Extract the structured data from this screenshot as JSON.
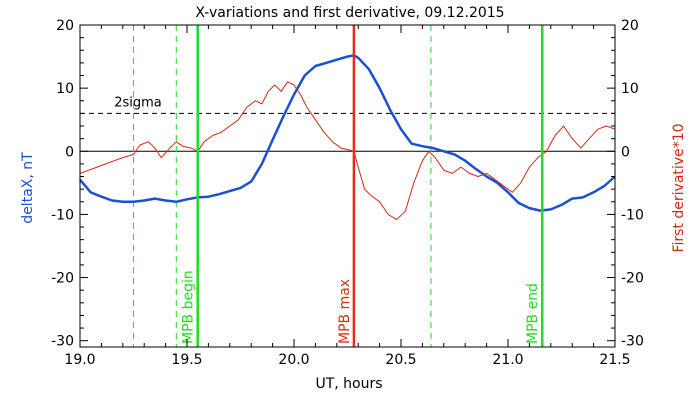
{
  "chart_data": {
    "type": "line",
    "title": "X-variations and first derivative, 09.12.2015",
    "xlabel": "UT, hours",
    "ylabel_left": "deltaX, nT",
    "ylabel_right": "First derivative*10",
    "xlim": [
      19.0,
      21.5
    ],
    "ylim": [
      -31,
      20
    ],
    "x_ticks": [
      19.0,
      19.5,
      20.0,
      20.5,
      21.0,
      21.5
    ],
    "x_tick_labels": [
      "19.0",
      "19.5",
      "20.0",
      "20.5",
      "21.0",
      "21.5"
    ],
    "y_ticks": [
      -30,
      -20,
      -10,
      0,
      10,
      20
    ],
    "y_tick_labels": [
      "-30",
      "-20",
      "-10",
      "0",
      "10",
      "20"
    ],
    "colors": {
      "series_x": "#1a4fd6",
      "series_deriv": "#d42a10",
      "markers_green": "#22dd22",
      "marker_red": "#e03010",
      "axis": "#000000"
    },
    "threshold": {
      "label": "2sigma",
      "value": 6
    },
    "zero_line": 0,
    "dashed_vlines": [
      19.25,
      19.45,
      20.64
    ],
    "markers": [
      {
        "label": "MPB begin",
        "x": 19.55,
        "color": "#22dd22"
      },
      {
        "label": "MPB max",
        "x": 20.28,
        "color": "#e03010"
      },
      {
        "label": "MPB end",
        "x": 21.16,
        "color": "#22dd22"
      }
    ],
    "series": [
      {
        "name": "deltaX",
        "x": [
          19.0,
          19.05,
          19.1,
          19.15,
          19.2,
          19.25,
          19.3,
          19.35,
          19.4,
          19.45,
          19.5,
          19.55,
          19.6,
          19.65,
          19.7,
          19.75,
          19.8,
          19.85,
          19.9,
          19.95,
          20.0,
          20.05,
          20.1,
          20.15,
          20.2,
          20.25,
          20.28,
          20.3,
          20.35,
          20.4,
          20.45,
          20.5,
          20.55,
          20.6,
          20.65,
          20.7,
          20.75,
          20.8,
          20.85,
          20.9,
          20.95,
          21.0,
          21.05,
          21.1,
          21.15,
          21.2,
          21.25,
          21.3,
          21.35,
          21.4,
          21.45,
          21.5
        ],
        "values": [
          -4.5,
          -6.5,
          -7.2,
          -7.8,
          -8.0,
          -8.0,
          -7.8,
          -7.5,
          -7.8,
          -8.0,
          -7.6,
          -7.3,
          -7.2,
          -6.8,
          -6.3,
          -5.8,
          -4.8,
          -2.0,
          1.8,
          5.5,
          9.0,
          12.0,
          13.5,
          14.0,
          14.5,
          15.0,
          15.2,
          14.8,
          13.0,
          10.0,
          6.5,
          3.5,
          1.2,
          0.8,
          0.5,
          0.0,
          -0.5,
          -1.5,
          -2.8,
          -4.0,
          -5.0,
          -6.5,
          -8.2,
          -9.0,
          -9.4,
          -9.2,
          -8.5,
          -7.5,
          -7.3,
          -6.5,
          -5.5,
          -4.0
        ]
      },
      {
        "name": "First derivative*10",
        "x": [
          19.0,
          19.04,
          19.08,
          19.12,
          19.16,
          19.2,
          19.25,
          19.28,
          19.32,
          19.35,
          19.38,
          19.42,
          19.45,
          19.48,
          19.52,
          19.55,
          19.58,
          19.62,
          19.66,
          19.7,
          19.74,
          19.78,
          19.82,
          19.85,
          19.88,
          19.91,
          19.94,
          19.97,
          20.0,
          20.03,
          20.06,
          20.1,
          20.14,
          20.18,
          20.22,
          20.26,
          20.28,
          20.3,
          20.33,
          20.36,
          20.4,
          20.44,
          20.48,
          20.52,
          20.56,
          20.6,
          20.63,
          20.66,
          20.7,
          20.74,
          20.78,
          20.82,
          20.86,
          20.9,
          20.94,
          20.98,
          21.02,
          21.06,
          21.1,
          21.14,
          21.18,
          21.22,
          21.26,
          21.3,
          21.34,
          21.38,
          21.42,
          21.46,
          21.5
        ],
        "values": [
          -3.5,
          -3.0,
          -2.5,
          -2.0,
          -1.5,
          -1.0,
          -0.5,
          1.0,
          1.5,
          0.5,
          -1.0,
          0.5,
          1.5,
          0.8,
          0.5,
          0.0,
          1.5,
          2.5,
          3.0,
          4.0,
          5.0,
          7.0,
          8.0,
          7.5,
          9.5,
          10.5,
          9.5,
          11.0,
          10.5,
          9.0,
          7.0,
          5.0,
          3.0,
          1.5,
          0.5,
          0.2,
          0.0,
          -2.5,
          -6.0,
          -7.0,
          -8.0,
          -10.0,
          -10.8,
          -9.5,
          -5.0,
          -1.5,
          0.0,
          -1.0,
          -3.0,
          -3.5,
          -2.5,
          -3.5,
          -4.0,
          -3.5,
          -4.5,
          -5.5,
          -6.5,
          -5.0,
          -2.5,
          -1.0,
          0.0,
          2.5,
          4.0,
          2.0,
          0.5,
          2.0,
          3.5,
          4.0,
          3.5
        ]
      }
    ]
  }
}
